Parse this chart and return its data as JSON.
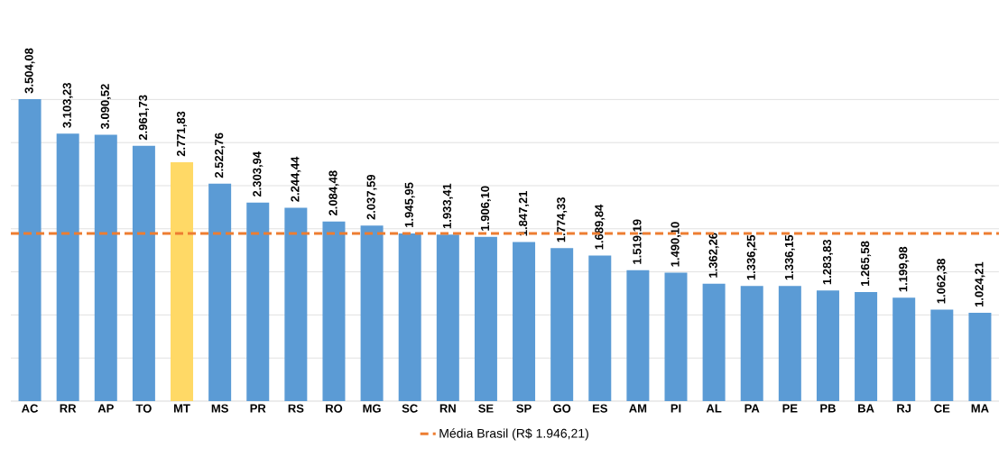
{
  "chart_data": {
    "type": "bar",
    "categories": [
      "AC",
      "RR",
      "AP",
      "TO",
      "MT",
      "MS",
      "PR",
      "RS",
      "RO",
      "MG",
      "SC",
      "RN",
      "SE",
      "SP",
      "GO",
      "ES",
      "AM",
      "PI",
      "AL",
      "PA",
      "PE",
      "PB",
      "BA",
      "RJ",
      "CE",
      "MA"
    ],
    "values": [
      3504.08,
      3103.23,
      3090.52,
      2961.73,
      2771.83,
      2522.76,
      2303.94,
      2244.44,
      2084.48,
      2037.59,
      1945.95,
      1933.41,
      1906.1,
      1847.21,
      1774.33,
      1689.84,
      1519.19,
      1490.1,
      1362.26,
      1336.25,
      1336.15,
      1283.83,
      1265.58,
      1199.98,
      1062.38,
      1024.21
    ],
    "value_labels": [
      "3.504,08",
      "3.103,23",
      "3.090,52",
      "2.961,73",
      "2.771,83",
      "2.522,76",
      "2.303,94",
      "2.244,44",
      "2.084,48",
      "2.037,59",
      "1.945,95",
      "1.933,41",
      "1.906,10",
      "1.847,21",
      "1.774,33",
      "1.689,84",
      "1.519,19",
      "1.490,10",
      "1.362,26",
      "1.336,25",
      "1.336,15",
      "1.283,83",
      "1.265,58",
      "1.199,98",
      "1.062,38",
      "1.024,21"
    ],
    "colors": [
      "#5b9bd5",
      "#5b9bd5",
      "#5b9bd5",
      "#5b9bd5",
      "#ffd966",
      "#5b9bd5",
      "#5b9bd5",
      "#5b9bd5",
      "#5b9bd5",
      "#5b9bd5",
      "#5b9bd5",
      "#5b9bd5",
      "#5b9bd5",
      "#5b9bd5",
      "#5b9bd5",
      "#5b9bd5",
      "#5b9bd5",
      "#5b9bd5",
      "#5b9bd5",
      "#5b9bd5",
      "#5b9bd5",
      "#5b9bd5",
      "#5b9bd5",
      "#5b9bd5",
      "#5b9bd5",
      "#5b9bd5"
    ],
    "tick_labels": "x",
    "grid": "y",
    "legend": "bottom",
    "ref_lines": [
      {
        "axis": "y",
        "value": 1946.21,
        "label": "Média Brasil (R$ 1.946,21)",
        "color": "#ed7d31",
        "line_style": "dashed"
      }
    ]
  }
}
